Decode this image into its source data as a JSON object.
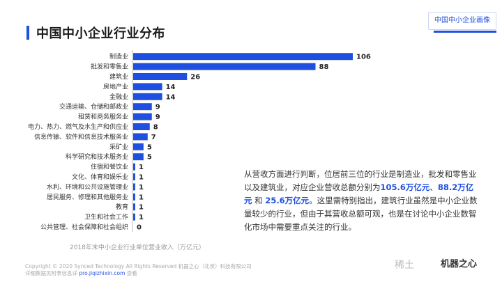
{
  "header": {
    "title": "中国中小企业行业分布",
    "tag": "中国中小企业画像"
  },
  "chart_data": {
    "type": "bar",
    "orientation": "horizontal",
    "categories": [
      "制造业",
      "批发和零售业",
      "建筑业",
      "房地产业",
      "金融业",
      "交通运输、仓储和邮政业",
      "租赁和商务服务业",
      "电力、热力、燃气及水生产和供应业",
      "信息传输、软件和信息技术服务业",
      "采矿业",
      "科学研究和技术服务业",
      "住宿和餐饮业",
      "文化、体育和娱乐业",
      "水利、环境和公共设施管理业",
      "居民服务、修理和其他服务业",
      "教育",
      "卫生和社会工作",
      "公共管理、社会保障和社会组织"
    ],
    "values": [
      106,
      88,
      26,
      14,
      14,
      9,
      9,
      8,
      7,
      5,
      5,
      1,
      1,
      1,
      1,
      1,
      1,
      0
    ],
    "xlabel": "2018年末中小企业行业单位营业收入（万亿元）",
    "bar_color": "#1f4fe0",
    "grid": false,
    "xlim": [
      0,
      106
    ]
  },
  "description": {
    "p1": "从营收方面进行判断，位居前三位的行业是制造业，批发和零售业以及建筑业，对应企业营收总额分别为",
    "v1": "105.6万亿元",
    "sep1": "、",
    "v2": "88.2万亿元",
    "sep2": " 和 ",
    "v3": "25.6万亿元",
    "p2": "。这里需特别指出，建筑行业虽然是中小企业数量较少的行业，但由于其营收总额可观，也是在讨论中小企业数智化市场中需要重点关注的行业。"
  },
  "footer": {
    "line1": "Copyright © 2020 Synced Technology All Rights Reserved 机器之心（北京）科技有限公司",
    "line2_prefix": "详细数据见附表信息详 ",
    "line2_url": "pro.jiqizhixin.com",
    "line2_suffix": " 查看"
  },
  "watermark": {
    "left": "稀土",
    "brand": "机器之心"
  },
  "colors": {
    "accent": "#1f4fe0"
  }
}
